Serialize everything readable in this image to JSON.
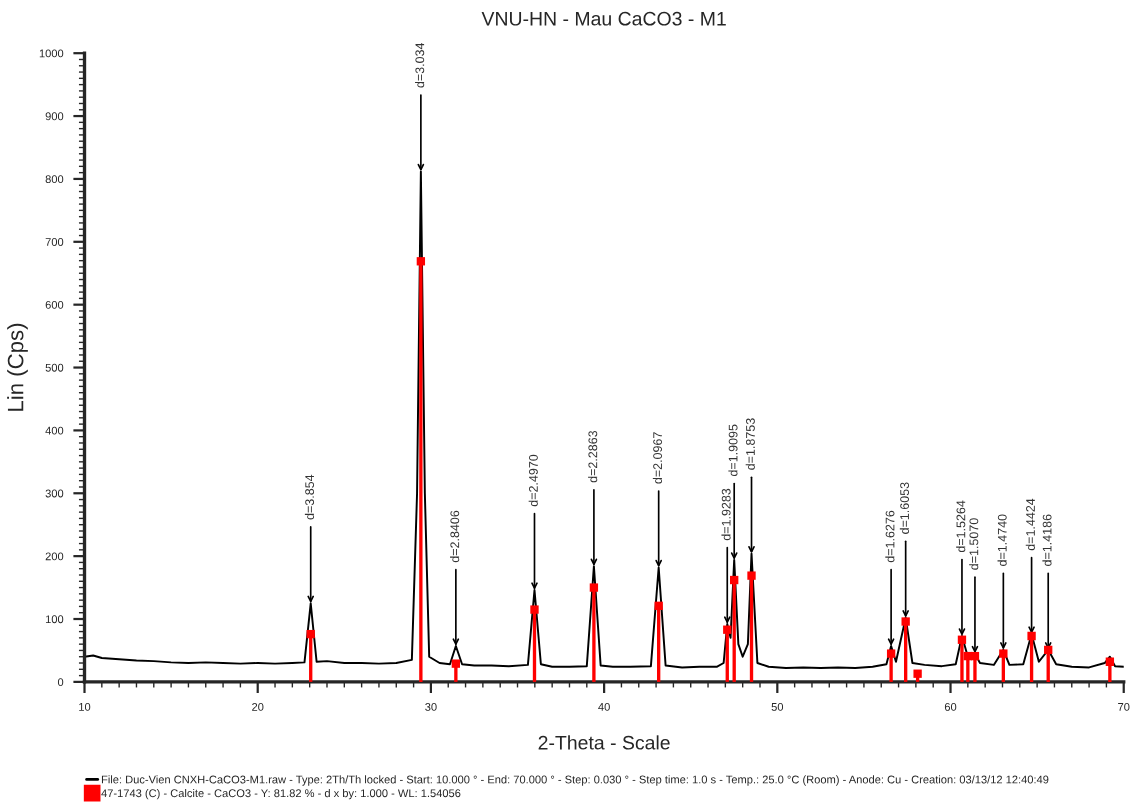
{
  "chart_data": {
    "type": "line",
    "title": "VNU-HN - Mau CaCO3 - M1",
    "xlabel": "2-Theta - Scale",
    "ylabel": "Lin (Cps)",
    "xlim": [
      10,
      70
    ],
    "xticks": [
      10,
      20,
      30,
      40,
      50,
      60,
      70
    ],
    "ylim": [
      0,
      1000
    ],
    "yticks": [
      0,
      100,
      200,
      300,
      400,
      500,
      600,
      700,
      800,
      900,
      1000
    ],
    "grid": false,
    "legend": "bottom",
    "marker": "none",
    "line_style": "solid",
    "series": [
      {
        "name": "File: Duc-Vien CNXH-CaCO3-M1.raw - Type: 2Th/Th locked - Start: 10.000 ° - End: 70.000 ° - Step: 0.030 ° - Step time: 1.0 s - Temp.: 25.0 °C (Room) - Anode: Cu - Creation: 03/13/12 12:40:49",
        "color": "#000000",
        "x": [
          10,
          10.5,
          11,
          12,
          13,
          14,
          15,
          16,
          17,
          18,
          19,
          20,
          21,
          22,
          22.7,
          23.06,
          23.4,
          24,
          25,
          26,
          27,
          28,
          28.9,
          29.2,
          29.42,
          29.65,
          29.9,
          30.5,
          31.1,
          31.44,
          31.8,
          32.5,
          33.5,
          34.5,
          35.6,
          35.98,
          36.35,
          37,
          38,
          39.0,
          39.41,
          39.8,
          40.5,
          41.5,
          42.7,
          43.15,
          43.55,
          44.5,
          45.5,
          46.5,
          46.9,
          47.11,
          47.3,
          47.51,
          47.75,
          48.0,
          48.3,
          48.51,
          48.85,
          49.5,
          50.5,
          51.5,
          52.5,
          53.5,
          54.5,
          55.5,
          56.3,
          56.57,
          56.85,
          57.41,
          57.8,
          58.5,
          59.5,
          60.3,
          60.66,
          61.0,
          61.41,
          61.7,
          62.5,
          63.05,
          63.4,
          64.2,
          64.68,
          65.1,
          65.64,
          66.1,
          67,
          68,
          68.9,
          69.2,
          69.5,
          70
        ],
        "values": [
          40,
          42,
          38,
          36,
          34,
          33,
          31,
          30,
          31,
          30,
          29,
          30,
          29,
          30,
          31,
          125,
          32,
          33,
          30,
          30,
          29,
          30,
          35,
          300,
          812,
          300,
          40,
          30,
          28,
          57,
          28,
          26,
          26,
          25,
          27,
          146,
          28,
          24,
          24,
          25,
          184,
          26,
          24,
          24,
          25,
          182,
          26,
          23,
          24,
          24,
          30,
          92,
          70,
          194,
          60,
          40,
          60,
          204,
          30,
          24,
          22,
          23,
          22,
          23,
          22,
          24,
          28,
          57,
          32,
          102,
          30,
          27,
          25,
          28,
          73,
          40,
          45,
          30,
          27,
          51,
          27,
          28,
          76,
          32,
          51,
          28,
          24,
          23,
          30,
          40,
          25,
          24
        ]
      },
      {
        "name": "47-1743 (C) - Calcite - CaCO3 - Y: 81.82 % - d x by: 1.000 - WL: 1.54056",
        "type": "lollipop",
        "color": "#ff0000",
        "marker": "square",
        "x": [
          23.06,
          29.42,
          31.44,
          35.98,
          39.41,
          43.15,
          47.11,
          47.51,
          48.51,
          56.57,
          57.41,
          58.1,
          60.66,
          61.0,
          61.41,
          63.05,
          64.68,
          65.64,
          69.2
        ],
        "values": [
          76,
          669,
          29,
          115,
          150,
          121,
          83,
          162,
          169,
          45,
          96,
          13,
          67,
          41,
          41,
          45,
          73,
          51,
          32
        ]
      }
    ],
    "annotations": [
      {
        "text": "d=3.854",
        "x": 23.06,
        "y": 125
      },
      {
        "text": "d=3.034",
        "x": 29.42,
        "y": 812
      },
      {
        "text": "d=2.8406",
        "x": 31.44,
        "y": 57
      },
      {
        "text": "d=2.4970",
        "x": 35.98,
        "y": 146
      },
      {
        "text": "d=2.2863",
        "x": 39.41,
        "y": 184
      },
      {
        "text": "d=2.0967",
        "x": 43.15,
        "y": 182
      },
      {
        "text": "d=1.9283",
        "x": 47.11,
        "y": 92
      },
      {
        "text": "d=1.9095",
        "x": 47.51,
        "y": 194
      },
      {
        "text": "d=1.8753",
        "x": 48.51,
        "y": 204
      },
      {
        "text": "d=1.6276",
        "x": 56.57,
        "y": 57
      },
      {
        "text": "d=1.6053",
        "x": 57.41,
        "y": 102
      },
      {
        "text": "d=1.5264",
        "x": 60.66,
        "y": 73
      },
      {
        "text": "d=1.5070",
        "x": 61.41,
        "y": 45
      },
      {
        "text": "d=1.4740",
        "x": 63.05,
        "y": 51
      },
      {
        "text": "d=1.4424",
        "x": 64.68,
        "y": 76
      },
      {
        "text": "d=1.4186",
        "x": 65.64,
        "y": 51
      }
    ]
  }
}
